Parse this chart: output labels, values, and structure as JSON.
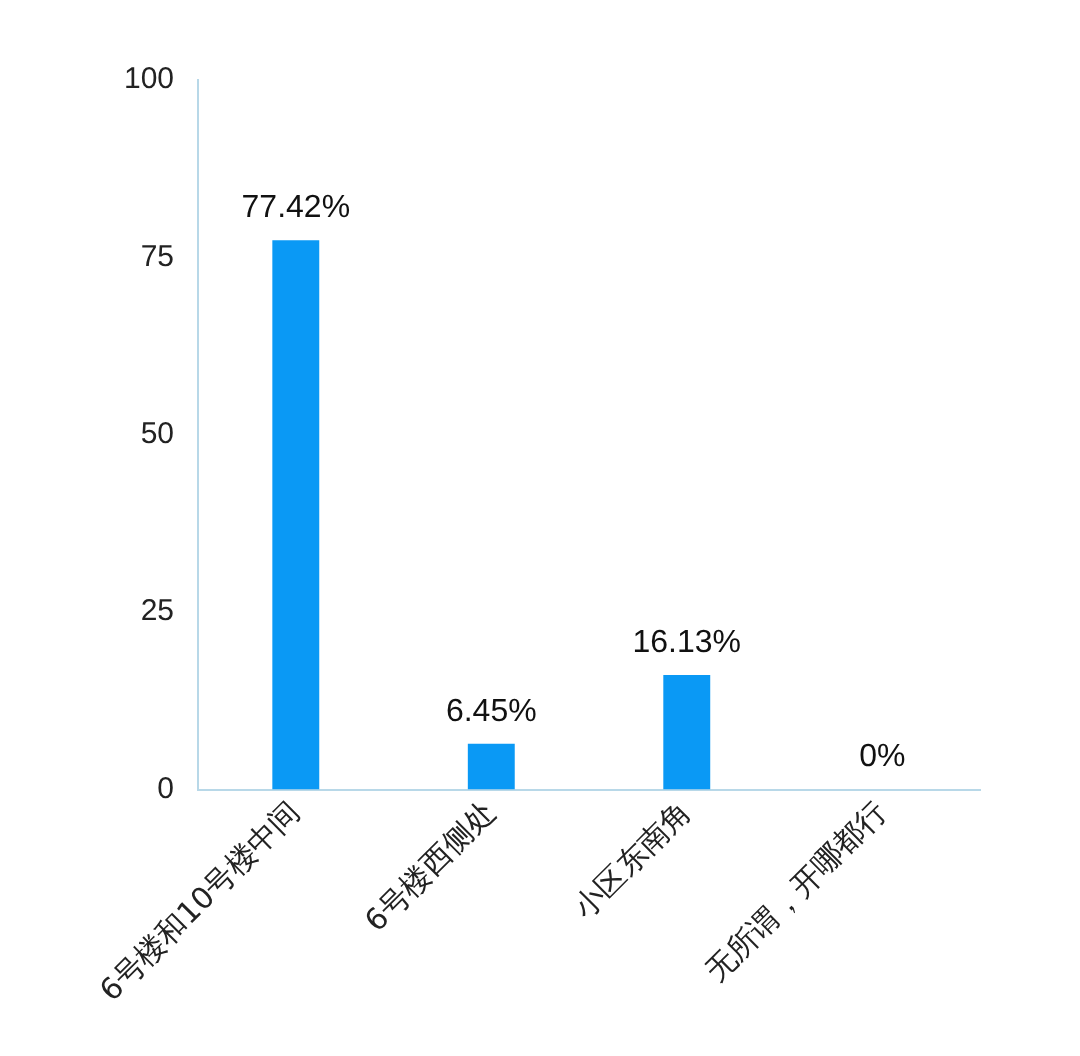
{
  "chart_data": {
    "type": "bar",
    "categories": [
      "6号楼和10号楼中间",
      "6号楼西侧处",
      "小区东南角",
      "无所谓，开哪都行"
    ],
    "values": [
      77.42,
      6.45,
      16.13,
      0
    ],
    "color": "#0a99f5",
    "value_labels": [
      "77.42%",
      "6.45%",
      "16.13%",
      "0%"
    ],
    "ylim": [
      0,
      100
    ],
    "yticks": [
      0,
      25,
      50,
      75,
      100
    ],
    "grid": false,
    "legend": false
  }
}
